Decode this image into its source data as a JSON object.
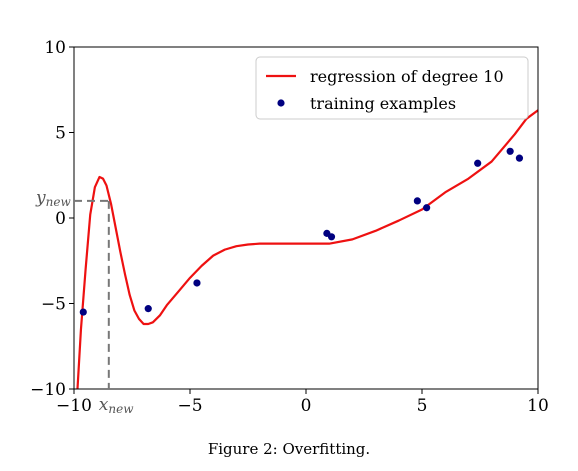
{
  "caption": "Figure 2: Overfitting.",
  "chart_data": {
    "type": "line",
    "xlim": [
      -10,
      10
    ],
    "ylim": [
      -10,
      10
    ],
    "xticks": [
      -10,
      -5,
      0,
      5,
      10
    ],
    "yticks": [
      -10,
      -5,
      0,
      5,
      10
    ],
    "xtick_labels": [
      "−10",
      "−5",
      "0",
      "5",
      "10"
    ],
    "ytick_labels": [
      "−10",
      "−5",
      "0",
      "5",
      "10"
    ],
    "grid": false,
    "legend_position": "top-right",
    "series": [
      {
        "name": "regression of degree 10",
        "kind": "line",
        "color": "#ee1111",
        "x": [
          -9.85,
          -9.7,
          -9.5,
          -9.3,
          -9.1,
          -8.9,
          -8.75,
          -8.6,
          -8.4,
          -8.2,
          -8.0,
          -7.8,
          -7.6,
          -7.4,
          -7.2,
          -7.0,
          -6.8,
          -6.6,
          -6.3,
          -6.0,
          -5.5,
          -5.0,
          -4.5,
          -4.0,
          -3.5,
          -3.0,
          -2.5,
          -2.0,
          -1.5,
          -1.0,
          0.0,
          1.0,
          2.0,
          3.0,
          4.0,
          5.0,
          6.0,
          7.0,
          8.0,
          9.0,
          9.5,
          10.0
        ],
        "y": [
          -10.0,
          -6.5,
          -3.0,
          0.2,
          1.8,
          2.4,
          2.3,
          1.9,
          0.8,
          -0.6,
          -2.0,
          -3.3,
          -4.5,
          -5.4,
          -5.9,
          -6.2,
          -6.2,
          -6.1,
          -5.7,
          -5.1,
          -4.3,
          -3.5,
          -2.8,
          -2.2,
          -1.85,
          -1.65,
          -1.55,
          -1.5,
          -1.5,
          -1.5,
          -1.5,
          -1.5,
          -1.25,
          -0.75,
          -0.15,
          0.5,
          1.5,
          2.3,
          3.3,
          4.9,
          5.8,
          6.3
        ]
      },
      {
        "name": "training examples",
        "kind": "scatter",
        "color": "#000080",
        "x": [
          -9.6,
          -6.8,
          -4.7,
          0.9,
          1.1,
          4.8,
          5.2,
          7.4,
          8.8,
          9.2
        ],
        "y": [
          -5.5,
          -5.3,
          -3.8,
          -0.9,
          -1.1,
          1.0,
          0.6,
          3.2,
          3.9,
          3.5
        ]
      }
    ],
    "annotation": {
      "x_new": -8.5,
      "y_new": 1.0,
      "x_label_main": "x",
      "x_label_sub": "new",
      "y_label_main": "y",
      "y_label_sub": "new",
      "line_color": "#777777"
    }
  }
}
